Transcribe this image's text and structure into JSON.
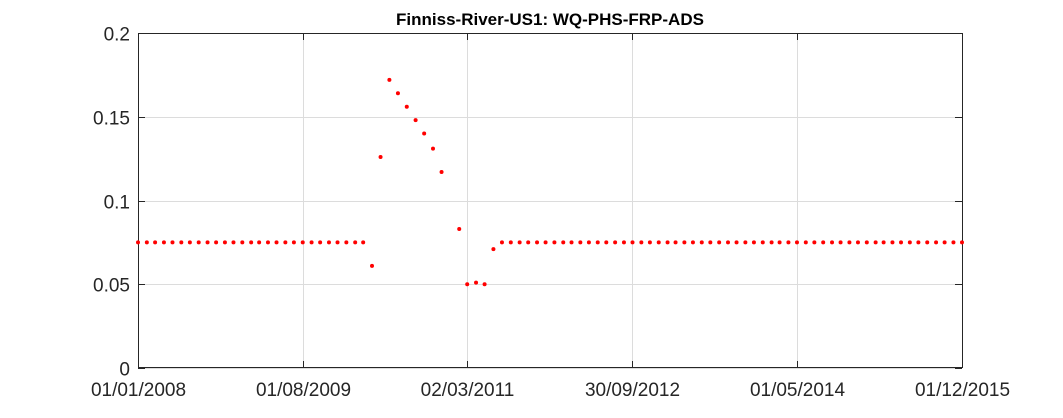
{
  "chart_data": {
    "type": "scatter",
    "title": "Finniss-River-US1: WQ-PHS-FRP-ADS",
    "xlabel": "",
    "ylabel": "",
    "x_axis_type": "date",
    "xlim": [
      "2008-01-01",
      "2015-12-01"
    ],
    "ylim": [
      0,
      0.2
    ],
    "y_ticks": [
      0,
      0.05,
      0.1,
      0.15,
      0.2
    ],
    "y_tick_labels": [
      "0",
      "0.05",
      "0.1",
      "0.15",
      "0.2"
    ],
    "x_ticks": [
      "2008-01-01",
      "2009-08-01",
      "2011-03-02",
      "2012-09-30",
      "2014-05-01",
      "2015-12-01"
    ],
    "x_tick_labels": [
      "01/01/2008",
      "01/08/2009",
      "02/03/2011",
      "30/09/2012",
      "01/05/2014",
      "01/12/2015"
    ],
    "grid": true,
    "marker_color": "#ff0000",
    "series": [
      {
        "points": [
          [
            "2008-01-01",
            0.075
          ],
          [
            "2008-02-01",
            0.075
          ],
          [
            "2008-03-01",
            0.075
          ],
          [
            "2008-04-01",
            0.075
          ],
          [
            "2008-05-01",
            0.075
          ],
          [
            "2008-06-01",
            0.075
          ],
          [
            "2008-07-01",
            0.075
          ],
          [
            "2008-08-01",
            0.075
          ],
          [
            "2008-09-01",
            0.075
          ],
          [
            "2008-10-01",
            0.075
          ],
          [
            "2008-11-01",
            0.075
          ],
          [
            "2008-12-01",
            0.075
          ],
          [
            "2009-01-01",
            0.075
          ],
          [
            "2009-02-01",
            0.075
          ],
          [
            "2009-03-01",
            0.075
          ],
          [
            "2009-04-01",
            0.075
          ],
          [
            "2009-05-01",
            0.075
          ],
          [
            "2009-06-01",
            0.075
          ],
          [
            "2009-07-01",
            0.075
          ],
          [
            "2009-08-01",
            0.075
          ],
          [
            "2009-09-01",
            0.075
          ],
          [
            "2009-10-01",
            0.075
          ],
          [
            "2009-11-01",
            0.075
          ],
          [
            "2009-12-01",
            0.075
          ],
          [
            "2010-01-01",
            0.075
          ],
          [
            "2010-02-01",
            0.075
          ],
          [
            "2010-03-01",
            0.075
          ],
          [
            "2010-04-01",
            0.061
          ],
          [
            "2010-05-01",
            0.126
          ],
          [
            "2010-06-01",
            0.172
          ],
          [
            "2010-07-01",
            0.164
          ],
          [
            "2010-08-01",
            0.156
          ],
          [
            "2010-09-01",
            0.148
          ],
          [
            "2010-10-01",
            0.14
          ],
          [
            "2010-11-01",
            0.131
          ],
          [
            "2010-12-01",
            0.117
          ],
          [
            "2011-02-01",
            0.083
          ],
          [
            "2011-03-01",
            0.05
          ],
          [
            "2011-04-01",
            0.051
          ],
          [
            "2011-05-01",
            0.05
          ],
          [
            "2011-06-01",
            0.071
          ],
          [
            "2011-07-01",
            0.075
          ],
          [
            "2011-08-01",
            0.075
          ],
          [
            "2011-09-01",
            0.075
          ],
          [
            "2011-10-01",
            0.075
          ],
          [
            "2011-11-01",
            0.075
          ],
          [
            "2011-12-01",
            0.075
          ],
          [
            "2012-01-01",
            0.075
          ],
          [
            "2012-02-01",
            0.075
          ],
          [
            "2012-03-01",
            0.075
          ],
          [
            "2012-04-01",
            0.075
          ],
          [
            "2012-05-01",
            0.075
          ],
          [
            "2012-06-01",
            0.075
          ],
          [
            "2012-07-01",
            0.075
          ],
          [
            "2012-08-01",
            0.075
          ],
          [
            "2012-09-01",
            0.075
          ],
          [
            "2012-10-01",
            0.075
          ],
          [
            "2012-11-01",
            0.075
          ],
          [
            "2012-12-01",
            0.075
          ],
          [
            "2013-01-01",
            0.075
          ],
          [
            "2013-02-01",
            0.075
          ],
          [
            "2013-03-01",
            0.075
          ],
          [
            "2013-04-01",
            0.075
          ],
          [
            "2013-05-01",
            0.075
          ],
          [
            "2013-06-01",
            0.075
          ],
          [
            "2013-07-01",
            0.075
          ],
          [
            "2013-08-01",
            0.075
          ],
          [
            "2013-09-01",
            0.075
          ],
          [
            "2013-10-01",
            0.075
          ],
          [
            "2013-11-01",
            0.075
          ],
          [
            "2013-12-01",
            0.075
          ],
          [
            "2014-01-01",
            0.075
          ],
          [
            "2014-02-01",
            0.075
          ],
          [
            "2014-03-01",
            0.075
          ],
          [
            "2014-04-01",
            0.075
          ],
          [
            "2014-05-01",
            0.075
          ],
          [
            "2014-06-01",
            0.075
          ],
          [
            "2014-07-01",
            0.075
          ],
          [
            "2014-08-01",
            0.075
          ],
          [
            "2014-09-01",
            0.075
          ],
          [
            "2014-10-01",
            0.075
          ],
          [
            "2014-11-01",
            0.075
          ],
          [
            "2014-12-01",
            0.075
          ],
          [
            "2015-01-01",
            0.075
          ],
          [
            "2015-02-01",
            0.075
          ],
          [
            "2015-03-01",
            0.075
          ],
          [
            "2015-04-01",
            0.075
          ],
          [
            "2015-05-01",
            0.075
          ],
          [
            "2015-06-01",
            0.075
          ],
          [
            "2015-07-01",
            0.075
          ],
          [
            "2015-08-01",
            0.075
          ],
          [
            "2015-09-01",
            0.075
          ],
          [
            "2015-10-01",
            0.075
          ],
          [
            "2015-11-01",
            0.075
          ],
          [
            "2015-12-01",
            0.075
          ]
        ]
      }
    ]
  }
}
